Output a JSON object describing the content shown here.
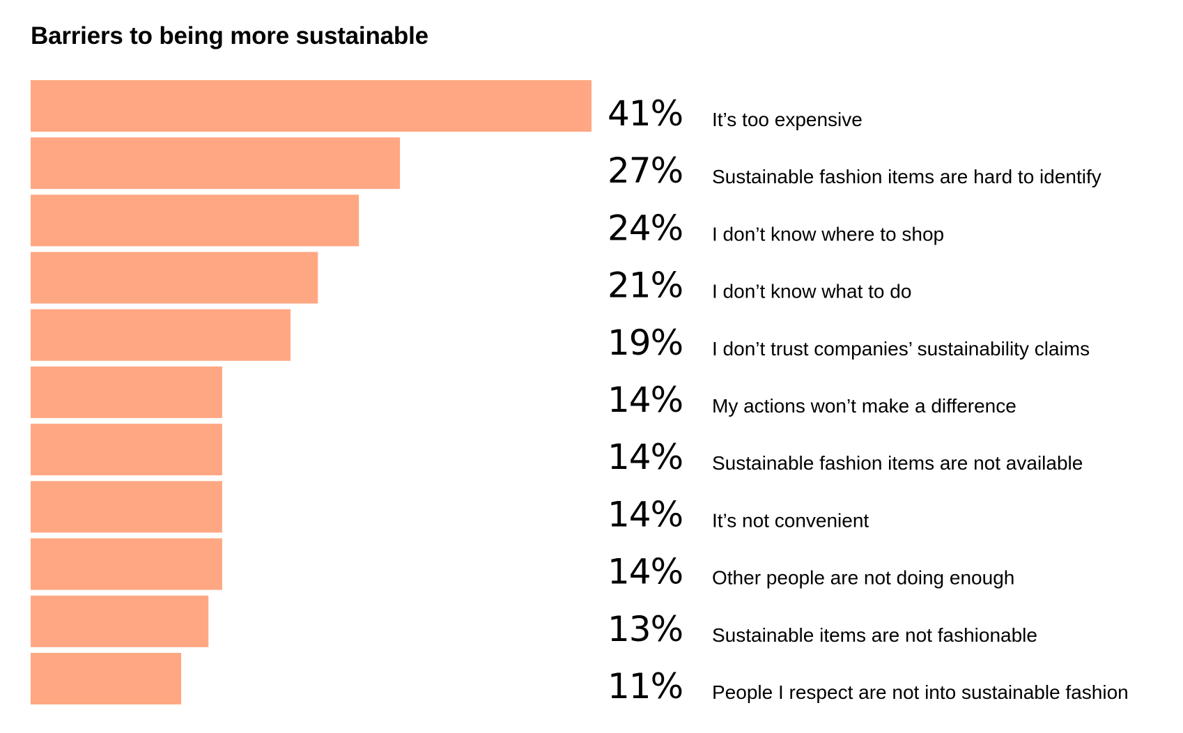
{
  "chart_data": {
    "type": "bar",
    "orientation": "horizontal",
    "title": "Barriers to being more sustainable",
    "categories": [
      "It’s too expensive",
      "Sustainable fashion items are hard to identify",
      "I don’t know where to shop",
      "I don’t know what to do",
      "I don’t trust companies’ sustainability claims",
      "My actions won’t make a difference",
      "Sustainable fashion items are not available",
      "It’s not convenient",
      "Other people are not doing enough",
      "Sustainable items are not fashionable",
      "People I respect are not into sustainable fashion"
    ],
    "values": [
      41,
      27,
      24,
      21,
      19,
      14,
      14,
      14,
      14,
      13,
      11
    ],
    "value_labels": [
      "41%",
      "27%",
      "24%",
      "21%",
      "19%",
      "14%",
      "14%",
      "14%",
      "14%",
      "13%",
      "11%"
    ],
    "unit": "%",
    "xlim": [
      0,
      41
    ],
    "grid": false,
    "legend": "none",
    "bar_color": "#ffa782",
    "text_color": "#000000",
    "background": "#ffffff"
  }
}
